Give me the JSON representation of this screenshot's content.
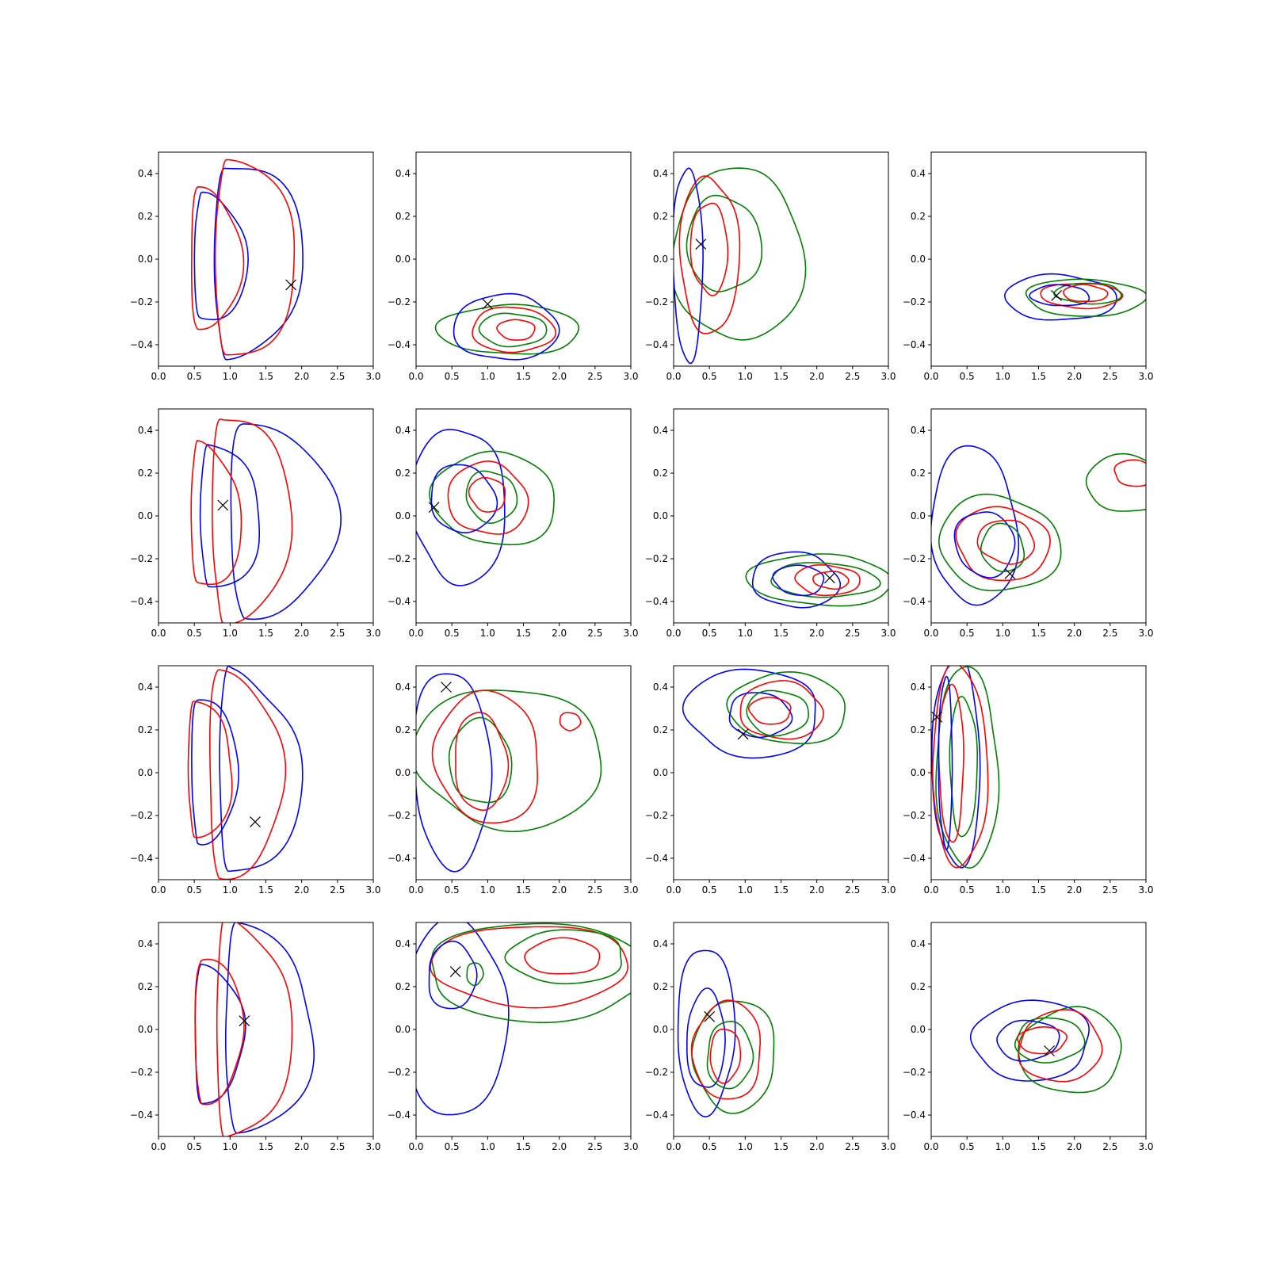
{
  "figure": {
    "rows": 4,
    "cols": 4
  },
  "colors": {
    "blue": "#0000ff",
    "red": "#ff0000",
    "green": "#008000",
    "marker": "#000000",
    "axis": "#000000"
  },
  "axes": {
    "xlim": [
      0,
      3.0
    ],
    "ylim": [
      -0.5,
      0.5
    ],
    "xticks": [
      0,
      0.5,
      1.0,
      1.5,
      2.0,
      2.5,
      3.0
    ],
    "yticks": [
      -0.4,
      -0.2,
      0.0,
      0.2,
      0.4
    ],
    "xtick_labels": [
      "0.0",
      "0.5",
      "1.0",
      "1.5",
      "2.0",
      "2.5",
      "3.0"
    ],
    "ytick_labels": [
      "−0.4",
      "−0.2",
      "0.0",
      "0.2",
      "0.4"
    ]
  },
  "chart_data": [
    {
      "type": "contour",
      "row": 0,
      "col": 0,
      "marker": [
        1.85,
        -0.12
      ],
      "contours": [
        {
          "color": "blue",
          "center": [
            0.95,
            0.0
          ],
          "rx": 1.05,
          "ry": 0.47,
          "shape": "half"
        },
        {
          "color": "red",
          "center": [
            0.95,
            0.0
          ],
          "rx": 0.95,
          "ry": 0.48,
          "shape": "half"
        },
        {
          "color": "blue",
          "center": [
            0.6,
            0.0
          ],
          "rx": 0.62,
          "ry": 0.31,
          "shape": "half"
        },
        {
          "color": "red",
          "center": [
            0.55,
            0.0
          ],
          "rx": 0.58,
          "ry": 0.35,
          "shape": "half"
        }
      ]
    },
    {
      "type": "contour",
      "row": 0,
      "col": 1,
      "marker": [
        1.0,
        -0.21
      ],
      "contours": [
        {
          "color": "green",
          "center": [
            1.3,
            -0.33
          ],
          "rx": 0.95,
          "ry": 0.12
        },
        {
          "color": "blue",
          "center": [
            1.25,
            -0.32
          ],
          "rx": 0.7,
          "ry": 0.16
        },
        {
          "color": "red",
          "center": [
            1.35,
            -0.33
          ],
          "rx": 0.55,
          "ry": 0.11
        },
        {
          "color": "green",
          "center": [
            1.35,
            -0.33
          ],
          "rx": 0.45,
          "ry": 0.08
        },
        {
          "color": "red",
          "center": [
            1.4,
            -0.33
          ],
          "rx": 0.25,
          "ry": 0.05
        }
      ]
    },
    {
      "type": "contour",
      "row": 0,
      "col": 2,
      "marker": [
        0.38,
        0.07
      ],
      "contours": [
        {
          "color": "green",
          "center": [
            0.9,
            0.02
          ],
          "rx": 0.88,
          "ry": 0.42
        },
        {
          "color": "green",
          "center": [
            0.7,
            0.07
          ],
          "rx": 0.5,
          "ry": 0.23
        },
        {
          "color": "red",
          "center": [
            0.5,
            0.02
          ],
          "rx": 0.4,
          "ry": 0.38
        },
        {
          "color": "blue",
          "center": [
            0.2,
            -0.02
          ],
          "rx": 0.2,
          "ry": 0.47
        },
        {
          "color": "red",
          "center": [
            0.5,
            0.05
          ],
          "rx": 0.25,
          "ry": 0.22
        }
      ]
    },
    {
      "type": "contour",
      "row": 0,
      "col": 3,
      "marker": [
        1.75,
        -0.17
      ],
      "contours": [
        {
          "color": "blue",
          "center": [
            1.8,
            -0.18
          ],
          "rx": 0.75,
          "ry": 0.11
        },
        {
          "color": "green",
          "center": [
            2.15,
            -0.18
          ],
          "rx": 0.8,
          "ry": 0.09
        },
        {
          "color": "red",
          "center": [
            2.1,
            -0.17
          ],
          "rx": 0.55,
          "ry": 0.06
        },
        {
          "color": "green",
          "center": [
            2.2,
            -0.16
          ],
          "rx": 0.45,
          "ry": 0.05
        },
        {
          "color": "blue",
          "center": [
            1.8,
            -0.17
          ],
          "rx": 0.4,
          "ry": 0.05
        },
        {
          "color": "red",
          "center": [
            2.15,
            -0.16
          ],
          "rx": 0.3,
          "ry": 0.04
        }
      ]
    },
    {
      "type": "contour",
      "row": 1,
      "col": 0,
      "marker": [
        0.9,
        0.05
      ],
      "contours": [
        {
          "color": "blue",
          "center": [
            1.2,
            -0.01
          ],
          "rx": 1.25,
          "ry": 0.47,
          "shape": "half"
        },
        {
          "color": "red",
          "center": [
            0.9,
            0.0
          ],
          "rx": 0.95,
          "ry": 0.49,
          "shape": "half"
        },
        {
          "color": "blue",
          "center": [
            0.7,
            0.0
          ],
          "rx": 0.72,
          "ry": 0.34,
          "shape": "half"
        },
        {
          "color": "red",
          "center": [
            0.55,
            0.0
          ],
          "rx": 0.6,
          "ry": 0.34,
          "shape": "half"
        }
      ]
    },
    {
      "type": "contour",
      "row": 1,
      "col": 1,
      "marker": [
        0.25,
        0.04
      ],
      "contours": [
        {
          "color": "blue",
          "center": [
            0.6,
            0.05
          ],
          "rx": 0.65,
          "ry": 0.37
        },
        {
          "color": "green",
          "center": [
            1.1,
            0.08
          ],
          "rx": 0.85,
          "ry": 0.22
        },
        {
          "color": "red",
          "center": [
            1.0,
            0.08
          ],
          "rx": 0.55,
          "ry": 0.17
        },
        {
          "color": "blue",
          "center": [
            0.65,
            0.08
          ],
          "rx": 0.45,
          "ry": 0.16
        },
        {
          "color": "green",
          "center": [
            1.05,
            0.09
          ],
          "rx": 0.35,
          "ry": 0.12
        },
        {
          "color": "red",
          "center": [
            1.0,
            0.1
          ],
          "rx": 0.25,
          "ry": 0.08
        }
      ]
    },
    {
      "type": "contour",
      "row": 1,
      "col": 2,
      "marker": [
        2.18,
        -0.29
      ],
      "contours": [
        {
          "color": "green",
          "center": [
            2.05,
            -0.3
          ],
          "rx": 1.0,
          "ry": 0.12
        },
        {
          "color": "blue",
          "center": [
            1.7,
            -0.3
          ],
          "rx": 0.6,
          "ry": 0.13
        },
        {
          "color": "green",
          "center": [
            2.1,
            -0.3
          ],
          "rx": 0.75,
          "ry": 0.08
        },
        {
          "color": "red",
          "center": [
            2.15,
            -0.3
          ],
          "rx": 0.45,
          "ry": 0.07
        },
        {
          "color": "blue",
          "center": [
            1.75,
            -0.3
          ],
          "rx": 0.35,
          "ry": 0.07
        },
        {
          "color": "red",
          "center": [
            2.2,
            -0.3
          ],
          "rx": 0.25,
          "ry": 0.04
        }
      ]
    },
    {
      "type": "contour",
      "row": 1,
      "col": 3,
      "marker": [
        1.1,
        -0.27
      ],
      "contours": [
        {
          "color": "blue",
          "center": [
            0.6,
            -0.05
          ],
          "rx": 0.6,
          "ry": 0.37
        },
        {
          "color": "green",
          "center": [
            0.95,
            -0.13
          ],
          "rx": 0.85,
          "ry": 0.22
        },
        {
          "color": "red",
          "center": [
            1.0,
            -0.13
          ],
          "rx": 0.65,
          "ry": 0.17
        },
        {
          "color": "blue",
          "center": [
            0.75,
            -0.13
          ],
          "rx": 0.42,
          "ry": 0.15
        },
        {
          "color": "red",
          "center": [
            1.05,
            -0.12
          ],
          "rx": 0.4,
          "ry": 0.1
        },
        {
          "color": "green",
          "center": [
            1.0,
            -0.15
          ],
          "rx": 0.3,
          "ry": 0.11
        },
        {
          "color": "green",
          "center": [
            2.75,
            0.15
          ],
          "rx": 0.6,
          "ry": 0.13
        },
        {
          "color": "red",
          "center": [
            2.85,
            0.2
          ],
          "rx": 0.3,
          "ry": 0.06
        }
      ]
    },
    {
      "type": "contour",
      "row": 2,
      "col": 0,
      "marker": [
        1.35,
        -0.23
      ],
      "contours": [
        {
          "color": "blue",
          "center": [
            1.0,
            0.0
          ],
          "rx": 1.0,
          "ry": 0.47,
          "shape": "half"
        },
        {
          "color": "red",
          "center": [
            0.85,
            0.0
          ],
          "rx": 0.9,
          "ry": 0.48,
          "shape": "half"
        },
        {
          "color": "blue",
          "center": [
            0.55,
            0.02
          ],
          "rx": 0.58,
          "ry": 0.33,
          "shape": "half"
        },
        {
          "color": "red",
          "center": [
            0.5,
            0.02
          ],
          "rx": 0.55,
          "ry": 0.31,
          "shape": "half"
        }
      ]
    },
    {
      "type": "contour",
      "row": 2,
      "col": 1,
      "marker": [
        0.42,
        0.4
      ],
      "contours": [
        {
          "color": "blue",
          "center": [
            0.5,
            0.02
          ],
          "rx": 0.55,
          "ry": 0.45
        },
        {
          "color": "green",
          "center": [
            1.3,
            0.07
          ],
          "rx": 1.35,
          "ry": 0.32
        },
        {
          "color": "red",
          "center": [
            1.0,
            0.07
          ],
          "rx": 0.75,
          "ry": 0.3
        },
        {
          "color": "green",
          "center": [
            0.9,
            0.05
          ],
          "rx": 0.45,
          "ry": 0.19
        },
        {
          "color": "red",
          "center": [
            0.9,
            0.05
          ],
          "rx": 0.38,
          "ry": 0.22
        },
        {
          "color": "red",
          "center": [
            2.15,
            0.24
          ],
          "rx": 0.15,
          "ry": 0.04
        }
      ]
    },
    {
      "type": "contour",
      "row": 2,
      "col": 2,
      "marker": [
        0.97,
        0.18
      ],
      "contours": [
        {
          "color": "blue",
          "center": [
            1.1,
            0.28
          ],
          "rx": 0.95,
          "ry": 0.2
        },
        {
          "color": "green",
          "center": [
            1.6,
            0.3
          ],
          "rx": 0.85,
          "ry": 0.16
        },
        {
          "color": "red",
          "center": [
            1.5,
            0.29
          ],
          "rx": 0.6,
          "ry": 0.13
        },
        {
          "color": "blue",
          "center": [
            1.2,
            0.27
          ],
          "rx": 0.45,
          "ry": 0.1
        },
        {
          "color": "green",
          "center": [
            1.45,
            0.28
          ],
          "rx": 0.45,
          "ry": 0.1
        },
        {
          "color": "red",
          "center": [
            1.35,
            0.29
          ],
          "rx": 0.3,
          "ry": 0.06
        }
      ]
    },
    {
      "type": "contour",
      "row": 2,
      "col": 3,
      "marker": [
        0.08,
        0.26
      ],
      "contours": [
        {
          "color": "blue",
          "center": [
            0.35,
            0.05
          ],
          "rx": 0.35,
          "ry": 0.47
        },
        {
          "color": "green",
          "center": [
            0.5,
            0.02
          ],
          "rx": 0.45,
          "ry": 0.45
        },
        {
          "color": "red",
          "center": [
            0.4,
            0.03
          ],
          "rx": 0.4,
          "ry": 0.45
        },
        {
          "color": "green",
          "center": [
            0.45,
            0.03
          ],
          "rx": 0.2,
          "ry": 0.31
        },
        {
          "color": "red",
          "center": [
            0.28,
            0.05
          ],
          "rx": 0.18,
          "ry": 0.35
        },
        {
          "color": "blue",
          "center": [
            0.2,
            0.05
          ],
          "rx": 0.1,
          "ry": 0.38
        }
      ]
    },
    {
      "type": "contour",
      "row": 3,
      "col": 0,
      "marker": [
        1.2,
        0.04
      ],
      "contours": [
        {
          "color": "blue",
          "center": [
            1.1,
            0.0
          ],
          "rx": 1.1,
          "ry": 0.47,
          "shape": "half"
        },
        {
          "color": "red",
          "center": [
            0.95,
            0.0
          ],
          "rx": 0.95,
          "ry": 0.49,
          "shape": "half"
        },
        {
          "color": "blue",
          "center": [
            0.6,
            -0.02
          ],
          "rx": 0.62,
          "ry": 0.31,
          "shape": "half"
        },
        {
          "color": "red",
          "center": [
            0.6,
            0.0
          ],
          "rx": 0.62,
          "ry": 0.32,
          "shape": "half"
        }
      ]
    },
    {
      "type": "contour",
      "row": 3,
      "col": 1,
      "marker": [
        0.55,
        0.27
      ],
      "contours": [
        {
          "color": "blue",
          "center": [
            0.55,
            0.05
          ],
          "rx": 0.75,
          "ry": 0.44
        },
        {
          "color": "green",
          "center": [
            1.7,
            0.27
          ],
          "rx": 1.6,
          "ry": 0.22
        },
        {
          "color": "red",
          "center": [
            1.6,
            0.3
          ],
          "rx": 1.45,
          "ry": 0.18
        },
        {
          "color": "green",
          "center": [
            2.1,
            0.34
          ],
          "rx": 0.85,
          "ry": 0.12
        },
        {
          "color": "red",
          "center": [
            2.05,
            0.34
          ],
          "rx": 0.55,
          "ry": 0.08
        },
        {
          "color": "blue",
          "center": [
            0.5,
            0.25
          ],
          "rx": 0.35,
          "ry": 0.15
        },
        {
          "color": "green",
          "center": [
            0.82,
            0.26
          ],
          "rx": 0.12,
          "ry": 0.05
        }
      ]
    },
    {
      "type": "contour",
      "row": 3,
      "col": 2,
      "marker": [
        0.5,
        0.06
      ],
      "contours": [
        {
          "color": "blue",
          "center": [
            0.45,
            0.0
          ],
          "rx": 0.42,
          "ry": 0.37
        },
        {
          "color": "green",
          "center": [
            0.85,
            -0.12
          ],
          "rx": 0.6,
          "ry": 0.25
        },
        {
          "color": "red",
          "center": [
            0.75,
            -0.1
          ],
          "rx": 0.5,
          "ry": 0.22
        },
        {
          "color": "blue",
          "center": [
            0.45,
            -0.05
          ],
          "rx": 0.28,
          "ry": 0.22
        },
        {
          "color": "green",
          "center": [
            0.78,
            -0.12
          ],
          "rx": 0.33,
          "ry": 0.15
        },
        {
          "color": "red",
          "center": [
            0.72,
            -0.12
          ],
          "rx": 0.22,
          "ry": 0.12
        }
      ]
    },
    {
      "type": "contour",
      "row": 3,
      "col": 3,
      "marker": [
        1.65,
        -0.1
      ],
      "contours": [
        {
          "color": "blue",
          "center": [
            1.4,
            -0.05
          ],
          "rx": 0.85,
          "ry": 0.18
        },
        {
          "color": "green",
          "center": [
            1.95,
            -0.1
          ],
          "rx": 0.75,
          "ry": 0.19
        },
        {
          "color": "red",
          "center": [
            1.8,
            -0.08
          ],
          "rx": 0.6,
          "ry": 0.16
        },
        {
          "color": "green",
          "center": [
            1.65,
            -0.05
          ],
          "rx": 0.5,
          "ry": 0.1
        },
        {
          "color": "blue",
          "center": [
            1.35,
            -0.05
          ],
          "rx": 0.45,
          "ry": 0.09
        },
        {
          "color": "red",
          "center": [
            1.55,
            -0.05
          ],
          "rx": 0.35,
          "ry": 0.06
        }
      ]
    }
  ]
}
